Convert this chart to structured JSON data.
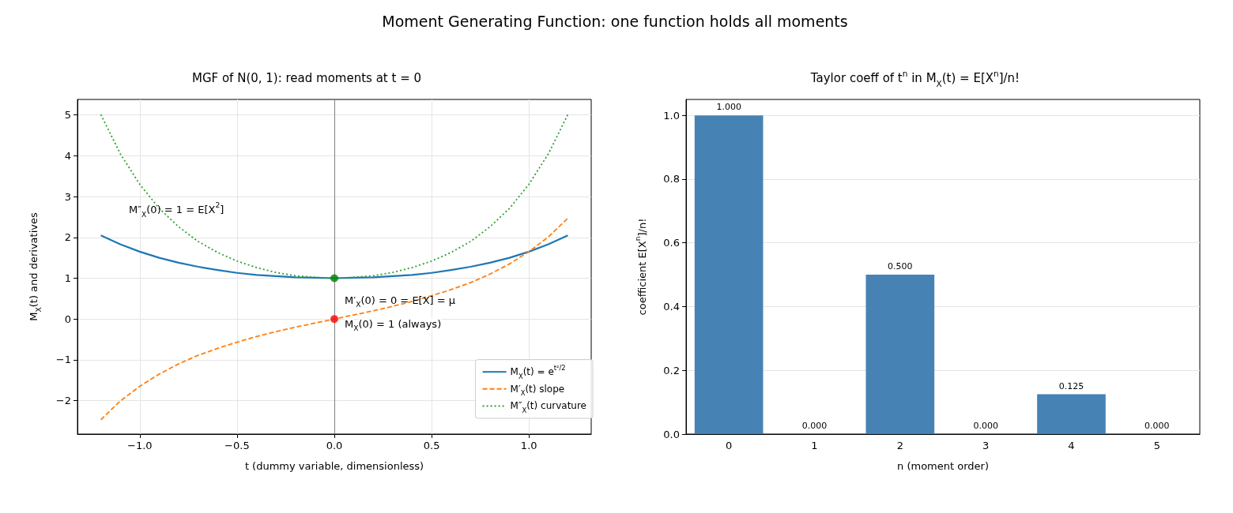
{
  "chart_data": [
    {
      "type": "line",
      "title": "MGF of N(0, 1): read moments at t = 0",
      "xlabel": "t (dummy variable, dimensionless)",
      "ylabel": "M$_{X}$(t) and derivatives",
      "annotations": [
        "Moment Generating Function: one function holds all moments",
        "M″$_{X}$(0) = 1 = E[X$^{2}$]",
        "M′$_{X}$(0) = 0 = E[X] = μ",
        "M$_{X}$(0) = 1 (always)"
      ],
      "x": [
        -1.2,
        -1.1,
        -1.0,
        -0.9,
        -0.8,
        -0.7,
        -0.6,
        -0.5,
        -0.4,
        -0.3,
        -0.2,
        -0.1,
        0,
        0.1,
        0.2,
        0.3,
        0.4,
        0.5,
        0.6,
        0.7,
        0.8,
        0.9,
        1.0,
        1.1,
        1.2
      ],
      "series": [
        {
          "name": "M$_{X}$(t) = e$^{t²/2}$",
          "color": "#1f77b4",
          "line_style": "solid",
          "values": [
            2.05,
            1.83,
            1.65,
            1.5,
            1.38,
            1.28,
            1.2,
            1.13,
            1.08,
            1.05,
            1.02,
            1.01,
            1,
            1.01,
            1.02,
            1.05,
            1.08,
            1.13,
            1.2,
            1.28,
            1.38,
            1.5,
            1.65,
            1.83,
            2.05
          ]
        },
        {
          "name": "M′$_{X}$(t) slope",
          "color": "#ff7f0e",
          "line_style": "dashed",
          "values": [
            -2.47,
            -2.01,
            -1.65,
            -1.35,
            -1.1,
            -0.89,
            -0.72,
            -0.57,
            -0.43,
            -0.31,
            -0.2,
            -0.1,
            0,
            0.1,
            0.2,
            0.31,
            0.43,
            0.57,
            0.72,
            0.89,
            1.1,
            1.35,
            1.65,
            2.01,
            2.47
          ]
        },
        {
          "name": "M″$_{X}$(t) curvature",
          "color": "#2ca02c",
          "line_style": "dotted",
          "values": [
            5.01,
            4.05,
            3.3,
            2.71,
            2.26,
            1.9,
            1.63,
            1.42,
            1.26,
            1.14,
            1.06,
            1.02,
            1,
            1.02,
            1.06,
            1.14,
            1.26,
            1.42,
            1.63,
            1.9,
            2.26,
            2.71,
            3.3,
            4.05,
            5.01
          ]
        },
        {
          "type": "scatter",
          "x": [
            0,
            0
          ],
          "values": [
            1,
            0
          ],
          "colors": [
            "#008000",
            "#ff0000"
          ],
          "marker": "circle"
        }
      ],
      "ref_lines": [
        {
          "axis": "x",
          "value": 0,
          "color": "#808080"
        }
      ],
      "xlim": [
        -1.32,
        1.32
      ],
      "xticks": [
        {
          "value": -1,
          "label": "−1.0"
        },
        {
          "value": -0.5,
          "label": "−0.5"
        },
        {
          "value": 0,
          "label": "0.0"
        },
        {
          "value": 0.5,
          "label": "0.5"
        },
        {
          "value": 1,
          "label": "1.0"
        }
      ],
      "ylim": [
        -2.82,
        5.38
      ],
      "yticks": [
        {
          "value": -2,
          "label": "−2"
        },
        {
          "value": -1,
          "label": "−1"
        },
        0,
        1,
        2,
        3,
        4,
        5
      ],
      "grid": true,
      "legend": "bottom right",
      "marker": "none"
    },
    {
      "type": "bar",
      "title": "Taylor coeff of t$^{n}$ in M$_{X}$(t) = E[X$^{n}$]/n!",
      "xlabel": "n (moment order)",
      "ylabel": "coefficient E[X$^{n}$]/n!",
      "categories": [
        "0",
        "1",
        "2",
        "3",
        "4",
        "5"
      ],
      "values": [
        1,
        0,
        0.5,
        0,
        0.125,
        0
      ],
      "color": "#4682b4",
      "value_labels": [
        "1.000",
        "0.000",
        "0.500",
        "0.000",
        "0.125",
        "0.000"
      ],
      "ylim": [
        0,
        1.05
      ],
      "yticks": [
        {
          "value": 0,
          "label": "0.0"
        },
        {
          "value": 0.2,
          "label": "0.2"
        },
        {
          "value": 0.4,
          "label": "0.4"
        },
        {
          "value": 0.6,
          "label": "0.6"
        },
        {
          "value": 0.8,
          "label": "0.8"
        },
        {
          "value": 1,
          "label": "1.0"
        }
      ],
      "grid": "y",
      "legend": false
    }
  ]
}
